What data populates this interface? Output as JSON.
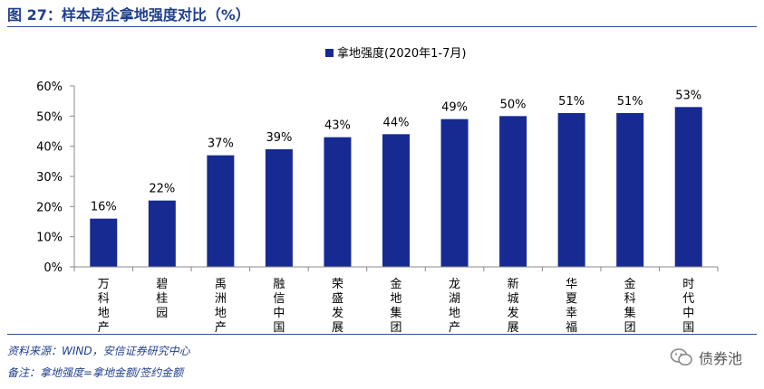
{
  "header": {
    "title": "图 27：样本房企拿地强度对比（%）"
  },
  "chart_data": {
    "type": "bar",
    "title": "",
    "categories": [
      "万科地产",
      "碧桂园",
      "禹洲地产",
      "融信中国",
      "荣盛发展",
      "金地集团",
      "龙湖地产",
      "新城发展",
      "华夏幸福",
      "金科集团",
      "时代中国"
    ],
    "series": [
      {
        "name": "拿地强度(2020年1-7月)",
        "values": [
          16,
          22,
          37,
          39,
          43,
          44,
          49,
          50,
          51,
          51,
          53
        ]
      }
    ],
    "value_labels": [
      "16%",
      "22%",
      "37%",
      "39%",
      "43%",
      "44%",
      "49%",
      "50%",
      "51%",
      "51%",
      "53%"
    ],
    "xlabel": "",
    "ylabel": "",
    "ylim": [
      0,
      60
    ],
    "yticks": [
      0,
      10,
      20,
      30,
      40,
      50,
      60
    ],
    "ytick_labels": [
      "0%",
      "10%",
      "20%",
      "30%",
      "40%",
      "50%",
      "60%"
    ],
    "grid": false,
    "legend_position": "top-center",
    "bar_color": "#162a91"
  },
  "footer": {
    "source": "资料来源：WIND，安信证券研究中心",
    "note": "备注：拿地强度=拿地金额/签约金额"
  },
  "watermark": {
    "icon": "wechat-icon",
    "text": "债券池"
  }
}
